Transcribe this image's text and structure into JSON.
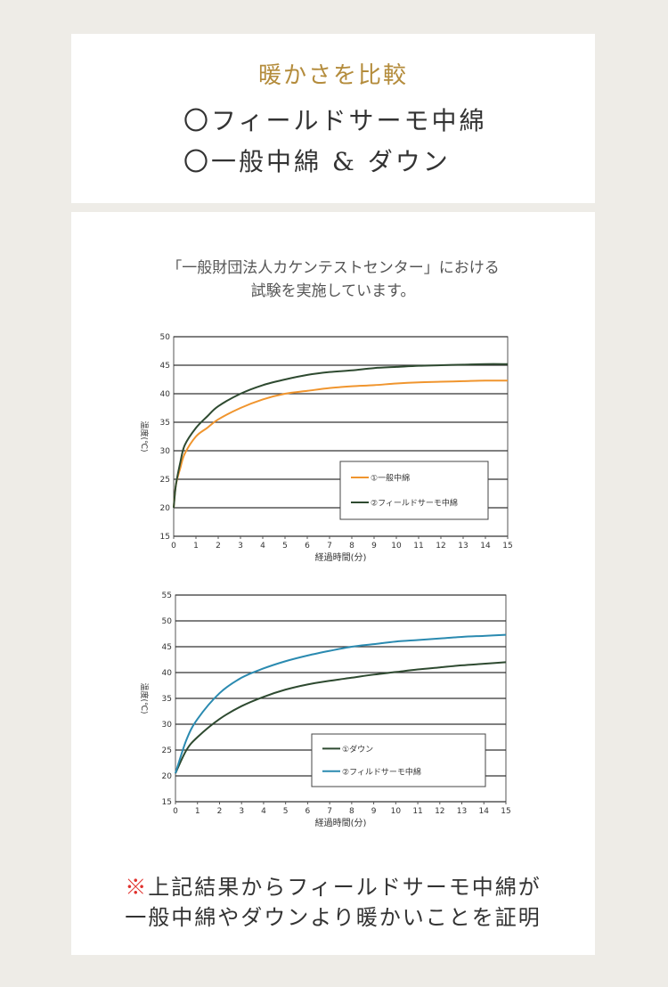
{
  "header": {
    "title": "暖かさを比較",
    "items": [
      "〇フィールドサーモ中綿",
      "〇一般中綿 & ダウン"
    ]
  },
  "intro": {
    "line1": "「一般財団法人カケンテストセンター」における",
    "line2": "試験を実施しています。"
  },
  "footnote": {
    "mark": "※",
    "line1": "上記結果からフィールドサーモ中綿が",
    "line2": "一般中綿やダウンより暖かいことを証明"
  },
  "colors": {
    "title": "#b48c3c",
    "note_mark": "#e0302c"
  },
  "chart_data": [
    {
      "type": "line",
      "xlabel": "経過時間(分)",
      "ylabel": "温度(℃)",
      "xlim": [
        0,
        15
      ],
      "ylim": [
        15,
        50
      ],
      "xticks": [
        0,
        1,
        2,
        3,
        4,
        5,
        6,
        7,
        8,
        9,
        10,
        11,
        12,
        13,
        14,
        15
      ],
      "yticks": [
        15,
        20,
        25,
        30,
        35,
        40,
        45,
        50
      ],
      "grid": "horizontal",
      "legend": "bottom-right",
      "x": [
        0,
        0.1,
        0.3,
        0.5,
        1,
        1.5,
        2,
        3,
        4,
        5,
        6,
        7,
        8,
        9,
        10,
        11,
        12,
        13,
        14,
        15
      ],
      "series": [
        {
          "name": "①一般中綿",
          "color": "#f0952e",
          "values": [
            20,
            24,
            27,
            29.5,
            32.5,
            34,
            35.5,
            37.5,
            39,
            40,
            40.5,
            41,
            41.3,
            41.5,
            41.8,
            42,
            42.1,
            42.2,
            42.3,
            42.3
          ]
        },
        {
          "name": "②フィールドサーモ中綿",
          "color": "#2e4a30",
          "values": [
            20,
            24,
            28,
            31,
            34,
            36,
            37.8,
            40,
            41.5,
            42.5,
            43.3,
            43.8,
            44.1,
            44.5,
            44.7,
            44.9,
            45,
            45.1,
            45.2,
            45.2
          ]
        }
      ]
    },
    {
      "type": "line",
      "xlabel": "経過時間(分)",
      "ylabel": "温度(℃)",
      "xlim": [
        0,
        15
      ],
      "ylim": [
        15,
        55
      ],
      "xticks": [
        0,
        1,
        2,
        3,
        4,
        5,
        6,
        7,
        8,
        9,
        10,
        11,
        12,
        13,
        14,
        15
      ],
      "yticks": [
        15,
        20,
        25,
        30,
        35,
        40,
        45,
        50,
        55
      ],
      "grid": "horizontal",
      "legend": "bottom-right",
      "x": [
        0,
        0.5,
        1,
        2,
        3,
        4,
        5,
        6,
        7,
        8,
        9,
        10,
        11,
        12,
        13,
        14,
        15
      ],
      "series": [
        {
          "name": "①ダウン",
          "color": "#2e4a30",
          "values": [
            20.5,
            25,
            27.5,
            31,
            33.5,
            35.3,
            36.7,
            37.7,
            38.4,
            39,
            39.6,
            40.1,
            40.6,
            41,
            41.4,
            41.7,
            42
          ]
        },
        {
          "name": "②フィルドサーモ中綿",
          "color": "#2a8ab0",
          "values": [
            20.5,
            27,
            31,
            36,
            39,
            40.8,
            42.2,
            43.3,
            44.2,
            45,
            45.5,
            46,
            46.3,
            46.6,
            46.9,
            47.1,
            47.3
          ]
        }
      ]
    }
  ]
}
